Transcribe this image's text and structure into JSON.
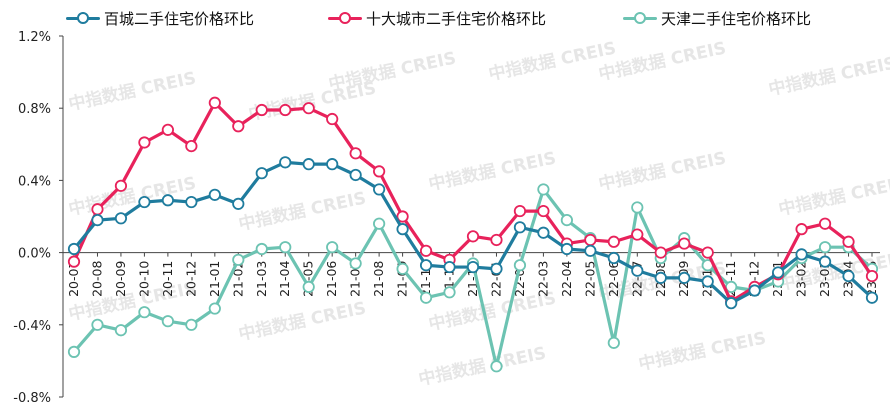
{
  "chart_data": {
    "type": "line",
    "title": "",
    "xlabel": "",
    "ylabel": "",
    "ylim": [
      -0.8,
      1.2
    ],
    "y_ticks": [
      "1.2%",
      "0.8%",
      "0.4%",
      "0.0%",
      "-0.4%",
      "-0.8%"
    ],
    "x_axis_crosses_at": 0.0,
    "grid": false,
    "legend_placement": "top",
    "watermark": "中指数据 CREIS",
    "categories": [
      "20-07",
      "20-08",
      "20-09",
      "20-10",
      "20-11",
      "20-12",
      "21-01",
      "21-02",
      "21-03",
      "21-04",
      "21-05",
      "21-06",
      "21-07",
      "21-08",
      "21-09",
      "21-10",
      "21-11",
      "21-12",
      "22-01",
      "22-02",
      "22-03",
      "22-04",
      "22-05",
      "22-06",
      "22-07",
      "22-08",
      "22-09",
      "22-10",
      "22-11",
      "22-12",
      "23-01",
      "23-02",
      "23-03",
      "23-04",
      "23-05"
    ],
    "series": [
      {
        "name": "百城二手住宅价格环比",
        "color": "#1f7c9e",
        "values": [
          0.02,
          0.18,
          0.19,
          0.28,
          0.29,
          0.28,
          0.32,
          0.27,
          0.44,
          0.5,
          0.49,
          0.49,
          0.43,
          0.35,
          0.13,
          -0.07,
          -0.08,
          -0.08,
          -0.09,
          0.14,
          0.11,
          0.02,
          0.01,
          -0.03,
          -0.1,
          -0.14,
          -0.14,
          -0.16,
          -0.28,
          -0.21,
          -0.11,
          -0.01,
          -0.05,
          -0.13,
          -0.25
        ]
      },
      {
        "name": "十大城市二手住宅价格环比",
        "color": "#e8225b",
        "values": [
          -0.05,
          0.24,
          0.37,
          0.61,
          0.68,
          0.59,
          0.83,
          0.7,
          0.79,
          0.79,
          0.8,
          0.74,
          0.55,
          0.45,
          0.2,
          0.01,
          -0.04,
          0.09,
          0.07,
          0.23,
          0.23,
          0.05,
          0.07,
          0.06,
          0.1,
          0.0,
          0.05,
          0.0,
          -0.27,
          -0.19,
          -0.12,
          0.13,
          0.16,
          0.06,
          -0.13
        ]
      },
      {
        "name": "天津二手住宅价格环比",
        "color": "#6cc3b2",
        "values": [
          -0.55,
          -0.4,
          -0.43,
          -0.33,
          -0.38,
          -0.4,
          -0.31,
          -0.04,
          0.02,
          0.03,
          -0.19,
          0.03,
          -0.06,
          0.16,
          -0.09,
          -0.25,
          -0.22,
          -0.06,
          -0.63,
          -0.07,
          0.35,
          0.18,
          0.08,
          -0.5,
          0.25,
          -0.03,
          0.08,
          -0.07,
          -0.19,
          -0.21,
          -0.16,
          -0.03,
          0.03,
          0.03,
          -0.09
        ]
      }
    ]
  }
}
